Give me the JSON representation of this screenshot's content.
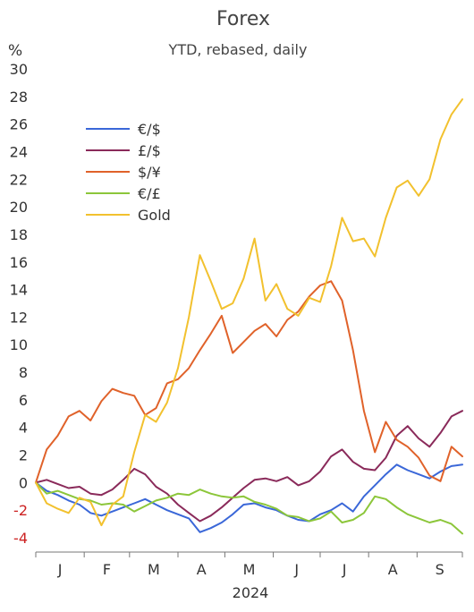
{
  "chart_data": {
    "type": "line",
    "title": "Forex",
    "subtitle": "YTD, rebased, daily",
    "y_unit": "%",
    "ylim": [
      -4,
      30
    ],
    "yticks": [
      -4,
      -2,
      0,
      2,
      4,
      6,
      8,
      10,
      12,
      14,
      16,
      18,
      20,
      22,
      24,
      26,
      28,
      30
    ],
    "months": [
      "J",
      "F",
      "M",
      "A",
      "M",
      "J",
      "J",
      "A",
      "S"
    ],
    "year_label": "2024",
    "grid": false,
    "legend_placement": "top-left",
    "x_start": "2024-01-01",
    "x_end": "2024-09-30",
    "series": [
      {
        "name": "€/$",
        "color": "#3a67d8",
        "points": [
          [
            "2024-01-01",
            0.0
          ],
          [
            "2024-01-08",
            -0.6
          ],
          [
            "2024-01-15",
            -0.9
          ],
          [
            "2024-01-22",
            -1.3
          ],
          [
            "2024-01-29",
            -1.6
          ],
          [
            "2024-02-05",
            -2.2
          ],
          [
            "2024-02-12",
            -2.4
          ],
          [
            "2024-02-19",
            -2.1
          ],
          [
            "2024-02-26",
            -1.8
          ],
          [
            "2024-03-04",
            -1.5
          ],
          [
            "2024-03-11",
            -1.2
          ],
          [
            "2024-03-18",
            -1.6
          ],
          [
            "2024-03-25",
            -2.0
          ],
          [
            "2024-04-01",
            -2.3
          ],
          [
            "2024-04-08",
            -2.6
          ],
          [
            "2024-04-15",
            -3.6
          ],
          [
            "2024-04-22",
            -3.3
          ],
          [
            "2024-04-29",
            -2.9
          ],
          [
            "2024-05-06",
            -2.3
          ],
          [
            "2024-05-13",
            -1.6
          ],
          [
            "2024-05-20",
            -1.5
          ],
          [
            "2024-05-27",
            -1.8
          ],
          [
            "2024-06-03",
            -2.0
          ],
          [
            "2024-06-10",
            -2.4
          ],
          [
            "2024-06-17",
            -2.7
          ],
          [
            "2024-06-24",
            -2.8
          ],
          [
            "2024-07-01",
            -2.3
          ],
          [
            "2024-07-08",
            -2.0
          ],
          [
            "2024-07-15",
            -1.5
          ],
          [
            "2024-07-22",
            -2.1
          ],
          [
            "2024-07-29",
            -1.0
          ],
          [
            "2024-08-05",
            -0.2
          ],
          [
            "2024-08-12",
            0.6
          ],
          [
            "2024-08-19",
            1.3
          ],
          [
            "2024-08-26",
            0.9
          ],
          [
            "2024-09-02",
            0.6
          ],
          [
            "2024-09-09",
            0.3
          ],
          [
            "2024-09-16",
            0.8
          ],
          [
            "2024-09-23",
            1.2
          ],
          [
            "2024-09-30",
            1.3
          ]
        ]
      },
      {
        "name": "£/$",
        "color": "#8a2a5a",
        "points": [
          [
            "2024-01-01",
            0.0
          ],
          [
            "2024-01-08",
            0.2
          ],
          [
            "2024-01-15",
            -0.1
          ],
          [
            "2024-01-22",
            -0.4
          ],
          [
            "2024-01-29",
            -0.3
          ],
          [
            "2024-02-05",
            -0.8
          ],
          [
            "2024-02-12",
            -0.9
          ],
          [
            "2024-02-19",
            -0.5
          ],
          [
            "2024-02-26",
            0.2
          ],
          [
            "2024-03-04",
            1.0
          ],
          [
            "2024-03-11",
            0.6
          ],
          [
            "2024-03-18",
            -0.3
          ],
          [
            "2024-03-25",
            -0.8
          ],
          [
            "2024-04-01",
            -1.6
          ],
          [
            "2024-04-08",
            -2.2
          ],
          [
            "2024-04-15",
            -2.8
          ],
          [
            "2024-04-22",
            -2.4
          ],
          [
            "2024-04-29",
            -1.8
          ],
          [
            "2024-05-06",
            -1.1
          ],
          [
            "2024-05-13",
            -0.4
          ],
          [
            "2024-05-20",
            0.2
          ],
          [
            "2024-05-27",
            0.3
          ],
          [
            "2024-06-03",
            0.1
          ],
          [
            "2024-06-10",
            0.4
          ],
          [
            "2024-06-17",
            -0.2
          ],
          [
            "2024-06-24",
            0.1
          ],
          [
            "2024-07-01",
            0.8
          ],
          [
            "2024-07-08",
            1.9
          ],
          [
            "2024-07-15",
            2.4
          ],
          [
            "2024-07-22",
            1.5
          ],
          [
            "2024-07-29",
            1.0
          ],
          [
            "2024-08-05",
            0.9
          ],
          [
            "2024-08-12",
            1.8
          ],
          [
            "2024-08-19",
            3.4
          ],
          [
            "2024-08-26",
            4.1
          ],
          [
            "2024-09-02",
            3.2
          ],
          [
            "2024-09-09",
            2.6
          ],
          [
            "2024-09-16",
            3.6
          ],
          [
            "2024-09-23",
            4.8
          ],
          [
            "2024-09-30",
            5.2
          ]
        ]
      },
      {
        "name": "$/¥",
        "color": "#e0622a",
        "points": [
          [
            "2024-01-01",
            0.0
          ],
          [
            "2024-01-08",
            2.4
          ],
          [
            "2024-01-15",
            3.4
          ],
          [
            "2024-01-22",
            4.8
          ],
          [
            "2024-01-29",
            5.2
          ],
          [
            "2024-02-05",
            4.5
          ],
          [
            "2024-02-12",
            5.9
          ],
          [
            "2024-02-19",
            6.8
          ],
          [
            "2024-02-26",
            6.5
          ],
          [
            "2024-03-04",
            6.3
          ],
          [
            "2024-03-11",
            4.9
          ],
          [
            "2024-03-18",
            5.4
          ],
          [
            "2024-03-25",
            7.2
          ],
          [
            "2024-04-01",
            7.5
          ],
          [
            "2024-04-08",
            8.3
          ],
          [
            "2024-04-15",
            9.6
          ],
          [
            "2024-04-22",
            10.8
          ],
          [
            "2024-04-29",
            12.1
          ],
          [
            "2024-05-06",
            9.4
          ],
          [
            "2024-05-13",
            10.2
          ],
          [
            "2024-05-20",
            11.0
          ],
          [
            "2024-05-27",
            11.5
          ],
          [
            "2024-06-03",
            10.6
          ],
          [
            "2024-06-10",
            11.8
          ],
          [
            "2024-06-17",
            12.4
          ],
          [
            "2024-06-24",
            13.5
          ],
          [
            "2024-07-01",
            14.3
          ],
          [
            "2024-07-08",
            14.6
          ],
          [
            "2024-07-15",
            13.2
          ],
          [
            "2024-07-22",
            9.6
          ],
          [
            "2024-07-29",
            5.2
          ],
          [
            "2024-08-05",
            2.2
          ],
          [
            "2024-08-12",
            4.4
          ],
          [
            "2024-08-19",
            3.1
          ],
          [
            "2024-08-26",
            2.6
          ],
          [
            "2024-09-02",
            1.8
          ],
          [
            "2024-09-09",
            0.5
          ],
          [
            "2024-09-16",
            0.1
          ],
          [
            "2024-09-23",
            2.6
          ],
          [
            "2024-09-30",
            1.9
          ]
        ]
      },
      {
        "name": "€/£",
        "color": "#8cc63a",
        "points": [
          [
            "2024-01-01",
            0.0
          ],
          [
            "2024-01-08",
            -0.8
          ],
          [
            "2024-01-15",
            -0.6
          ],
          [
            "2024-01-22",
            -0.9
          ],
          [
            "2024-01-29",
            -1.2
          ],
          [
            "2024-02-05",
            -1.3
          ],
          [
            "2024-02-12",
            -1.6
          ],
          [
            "2024-02-19",
            -1.5
          ],
          [
            "2024-02-26",
            -1.6
          ],
          [
            "2024-03-04",
            -2.1
          ],
          [
            "2024-03-11",
            -1.7
          ],
          [
            "2024-03-18",
            -1.3
          ],
          [
            "2024-03-25",
            -1.1
          ],
          [
            "2024-04-01",
            -0.8
          ],
          [
            "2024-04-08",
            -0.9
          ],
          [
            "2024-04-15",
            -0.5
          ],
          [
            "2024-04-22",
            -0.8
          ],
          [
            "2024-04-29",
            -1.0
          ],
          [
            "2024-05-06",
            -1.1
          ],
          [
            "2024-05-13",
            -1.0
          ],
          [
            "2024-05-20",
            -1.4
          ],
          [
            "2024-05-27",
            -1.6
          ],
          [
            "2024-06-03",
            -1.9
          ],
          [
            "2024-06-10",
            -2.4
          ],
          [
            "2024-06-17",
            -2.5
          ],
          [
            "2024-06-24",
            -2.8
          ],
          [
            "2024-07-01",
            -2.6
          ],
          [
            "2024-07-08",
            -2.1
          ],
          [
            "2024-07-15",
            -2.9
          ],
          [
            "2024-07-22",
            -2.7
          ],
          [
            "2024-07-29",
            -2.2
          ],
          [
            "2024-08-05",
            -1.0
          ],
          [
            "2024-08-12",
            -1.2
          ],
          [
            "2024-08-19",
            -1.8
          ],
          [
            "2024-08-26",
            -2.3
          ],
          [
            "2024-09-02",
            -2.6
          ],
          [
            "2024-09-09",
            -2.9
          ],
          [
            "2024-09-16",
            -2.7
          ],
          [
            "2024-09-23",
            -3.0
          ],
          [
            "2024-09-30",
            -3.7
          ]
        ]
      },
      {
        "name": "Gold",
        "color": "#f2c12e",
        "points": [
          [
            "2024-01-01",
            0.0
          ],
          [
            "2024-01-08",
            -1.5
          ],
          [
            "2024-01-15",
            -1.9
          ],
          [
            "2024-01-22",
            -2.2
          ],
          [
            "2024-01-29",
            -1.1
          ],
          [
            "2024-02-05",
            -1.4
          ],
          [
            "2024-02-12",
            -3.1
          ],
          [
            "2024-02-19",
            -1.6
          ],
          [
            "2024-02-26",
            -1.0
          ],
          [
            "2024-03-04",
            2.2
          ],
          [
            "2024-03-11",
            4.9
          ],
          [
            "2024-03-18",
            4.4
          ],
          [
            "2024-03-25",
            5.8
          ],
          [
            "2024-04-01",
            8.3
          ],
          [
            "2024-04-08",
            12.0
          ],
          [
            "2024-04-15",
            16.5
          ],
          [
            "2024-04-22",
            14.6
          ],
          [
            "2024-04-29",
            12.6
          ],
          [
            "2024-05-06",
            13.0
          ],
          [
            "2024-05-13",
            14.8
          ],
          [
            "2024-05-20",
            17.7
          ],
          [
            "2024-05-27",
            13.2
          ],
          [
            "2024-06-03",
            14.4
          ],
          [
            "2024-06-10",
            12.6
          ],
          [
            "2024-06-17",
            12.1
          ],
          [
            "2024-06-24",
            13.4
          ],
          [
            "2024-07-01",
            13.1
          ],
          [
            "2024-07-08",
            15.7
          ],
          [
            "2024-07-15",
            19.2
          ],
          [
            "2024-07-22",
            17.5
          ],
          [
            "2024-07-29",
            17.7
          ],
          [
            "2024-08-05",
            16.4
          ],
          [
            "2024-08-12",
            19.2
          ],
          [
            "2024-08-19",
            21.4
          ],
          [
            "2024-08-26",
            21.9
          ],
          [
            "2024-09-02",
            20.8
          ],
          [
            "2024-09-09",
            22.0
          ],
          [
            "2024-09-16",
            24.9
          ],
          [
            "2024-09-23",
            26.7
          ],
          [
            "2024-09-30",
            27.8
          ]
        ]
      }
    ]
  }
}
